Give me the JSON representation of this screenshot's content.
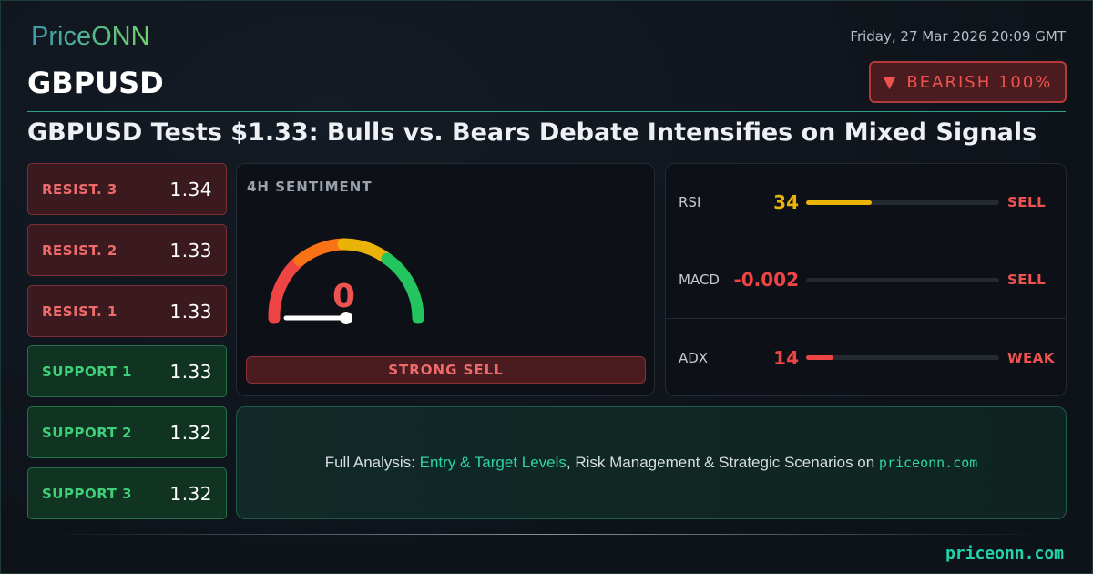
{
  "brand": {
    "logo": "PriceONN",
    "footer_site": "priceonn.com"
  },
  "header": {
    "datetime": "Friday, 27 Mar 2026 20:09 GMT",
    "symbol": "GBPUSD",
    "bias_icon": "triangle-down-icon",
    "bias_label": "BEARISH 100%",
    "headline": "GBPUSD Tests $1.33: Bulls vs. Bears Debate Intensifies on Mixed Signals"
  },
  "levels": [
    {
      "label": "RESIST. 3",
      "value": "1.34",
      "type": "resistance"
    },
    {
      "label": "RESIST. 2",
      "value": "1.33",
      "type": "resistance"
    },
    {
      "label": "RESIST. 1",
      "value": "1.33",
      "type": "resistance"
    },
    {
      "label": "SUPPORT 1",
      "value": "1.33",
      "type": "support"
    },
    {
      "label": "SUPPORT 2",
      "value": "1.32",
      "type": "support"
    },
    {
      "label": "SUPPORT 3",
      "value": "1.32",
      "type": "support"
    }
  ],
  "sentiment": {
    "title": "4H SENTIMENT",
    "value": "0",
    "gauge_percent": 0,
    "verdict": "STRONG SELL"
  },
  "indicators": [
    {
      "name": "RSI",
      "value": "34",
      "signal": "SELL",
      "bar_percent": 34,
      "color": "#eab308"
    },
    {
      "name": "MACD",
      "value": "-0.002",
      "signal": "SELL",
      "bar_percent": 0,
      "color": "#ef4444"
    },
    {
      "name": "ADX",
      "value": "14",
      "signal": "WEAK",
      "bar_percent": 14,
      "color": "#ef4444"
    }
  ],
  "cta": {
    "prefix": "Full Analysis: ",
    "highlight": "Entry & Target Levels",
    "middle": ", Risk Management & Strategic Scenarios on ",
    "site": "priceonn.com"
  },
  "colors": {
    "bearish": "#ef5350",
    "bullish": "#3fd07a",
    "accent": "#21d4a8"
  }
}
